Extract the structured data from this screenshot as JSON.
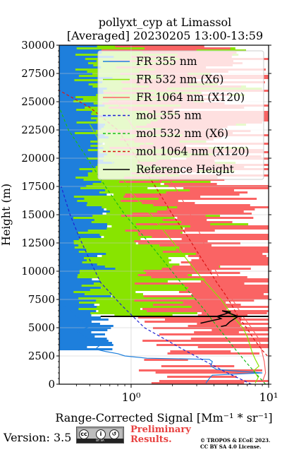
{
  "chart_data": {
    "type": "line",
    "title_line1": "pollyxt_cyp at Limassol",
    "title_line2": "[Averaged] 20230205 13:00-13:59",
    "xlabel": "Range-Corrected Signal [Mm⁻¹ * sr⁻¹]",
    "ylabel": "Height (m)",
    "x_scale": "log",
    "xlim": [
      0.3,
      10
    ],
    "ylim": [
      0,
      30000
    ],
    "x_ticks": [
      1,
      10
    ],
    "x_tick_labels": [
      "10⁰",
      "10¹"
    ],
    "y_ticks": [
      0,
      2500,
      5000,
      7500,
      10000,
      12500,
      15000,
      17500,
      20000,
      22500,
      25000,
      27500,
      30000
    ],
    "y_tick_labels": [
      "0",
      "2500",
      "5000",
      "7500",
      "10000",
      "12500",
      "15000",
      "17500",
      "20000",
      "22500",
      "25000",
      "27500",
      "30000"
    ],
    "grid": true,
    "legend_position": "top-right",
    "series": [
      {
        "name": "FR 355 nm",
        "color": "#1e7fdc",
        "style": "solid",
        "points": [
          [
            3.5,
            100
          ],
          [
            3.7,
            500
          ],
          [
            3.9,
            800
          ],
          [
            9.0,
            1000
          ],
          [
            4.2,
            1300
          ],
          [
            3.8,
            1600
          ],
          [
            3.9,
            2000
          ],
          [
            3.7,
            2200
          ],
          [
            1.3,
            2300
          ],
          [
            0.9,
            2500
          ],
          [
            0.8,
            2700
          ],
          [
            0.65,
            2900
          ],
          [
            0.55,
            3100
          ],
          [
            0.6,
            3500
          ],
          [
            0.65,
            3800
          ],
          [
            0.5,
            4000
          ],
          [
            0.45,
            4300
          ],
          [
            0.4,
            4700
          ],
          [
            0.5,
            5100
          ],
          [
            0.45,
            5500
          ],
          [
            0.4,
            6000
          ],
          [
            0.35,
            6600
          ],
          [
            0.32,
            7000
          ]
        ]
      },
      {
        "name": "FR 532 nm (X6)",
        "color": "#88e400",
        "style": "solid",
        "points": [
          [
            8.0,
            100
          ],
          [
            8.4,
            600
          ],
          [
            7.8,
            1200
          ],
          [
            8.5,
            1600
          ],
          [
            8.0,
            2200
          ],
          [
            7.6,
            2800
          ],
          [
            7.3,
            3500
          ],
          [
            7.0,
            4200
          ],
          [
            6.5,
            5000
          ],
          [
            5.5,
            6000
          ],
          [
            4.5,
            7500
          ],
          [
            3.2,
            9500
          ],
          [
            2.2,
            12000
          ],
          [
            1.5,
            14500
          ],
          [
            1.0,
            17000
          ],
          [
            0.7,
            20000
          ],
          [
            0.5,
            23000
          ]
        ]
      },
      {
        "name": "FR 1064 nm (X120)",
        "color": "#fa6464",
        "style": "solid",
        "points": [
          [
            9.0,
            200
          ],
          [
            9.5,
            1000
          ],
          [
            9.3,
            2000
          ],
          [
            8.9,
            3000
          ],
          [
            8.5,
            4000
          ],
          [
            7.5,
            5000
          ],
          [
            6.5,
            6000
          ],
          [
            5.8,
            7000
          ],
          [
            4.5,
            9000
          ],
          [
            3.8,
            11000
          ],
          [
            3.0,
            14000
          ],
          [
            2.2,
            17000
          ],
          [
            1.5,
            20000
          ],
          [
            1.0,
            23000
          ],
          [
            0.7,
            26000
          ]
        ]
      },
      {
        "name": "mol 355 nm",
        "color": "#1f24d2",
        "style": "dashed",
        "points": [
          [
            7.5,
            0
          ],
          [
            5.0,
            1000
          ],
          [
            3.5,
            2000
          ],
          [
            2.45,
            3000
          ],
          [
            1.75,
            4000
          ],
          [
            1.25,
            5000
          ],
          [
            0.85,
            7000
          ],
          [
            0.6,
            9000
          ],
          [
            0.5,
            11000
          ],
          [
            0.42,
            13000
          ],
          [
            0.36,
            15000
          ],
          [
            0.31,
            17500
          ]
        ]
      },
      {
        "name": "mol 532 nm (X6)",
        "color": "#18bd18",
        "style": "dashed",
        "points": [
          [
            9.5,
            0
          ],
          [
            8.0,
            1000
          ],
          [
            6.8,
            2000
          ],
          [
            5.8,
            3000
          ],
          [
            5.0,
            4000
          ],
          [
            4.3,
            5000
          ],
          [
            3.2,
            7000
          ],
          [
            2.3,
            9000
          ],
          [
            1.7,
            11000
          ],
          [
            1.25,
            13000
          ],
          [
            0.9,
            15000
          ],
          [
            0.65,
            17500
          ],
          [
            0.48,
            20000
          ],
          [
            0.35,
            22500
          ],
          [
            0.3,
            24500
          ]
        ]
      },
      {
        "name": "mol 1064 nm (X120)",
        "color": "#dc1414",
        "style": "dashed",
        "points": [
          [
            9.8,
            2500
          ],
          [
            9.0,
            3000
          ],
          [
            7.8,
            4000
          ],
          [
            6.9,
            5000
          ],
          [
            6.0,
            6000
          ],
          [
            5.4,
            7000
          ],
          [
            4.8,
            8000
          ],
          [
            4.2,
            9000
          ],
          [
            3.3,
            11000
          ],
          [
            2.6,
            13000
          ],
          [
            2.0,
            15000
          ],
          [
            1.5,
            17500
          ],
          [
            1.1,
            20000
          ],
          [
            0.8,
            22500
          ],
          [
            0.5,
            24500
          ],
          [
            0.3,
            26000
          ]
        ]
      },
      {
        "name": "Reference Height",
        "color": "#000000",
        "style": "solid",
        "points": [
          [
            3.2,
            5400
          ],
          [
            3.8,
            5600
          ],
          [
            4.5,
            5800
          ],
          [
            4.2,
            6000
          ],
          [
            4.8,
            6200
          ],
          [
            5.3,
            6400
          ],
          [
            4.6,
            6500
          ],
          [
            6.0,
            6000
          ],
          [
            5.2,
            5500
          ],
          [
            4.9,
            5200
          ],
          [
            4.5,
            5100
          ]
        ]
      }
    ]
  },
  "footer": {
    "version": "Version: 3.5",
    "license_badge": "BY SA",
    "preliminary_line1": "Preliminary",
    "preliminary_line2": "Results.",
    "copyright_line1": "© TROPOS & ECoE 2023.",
    "copyright_line2": "CC BY SA 4.0 License.",
    "preliminary_color": "#e8403f"
  }
}
